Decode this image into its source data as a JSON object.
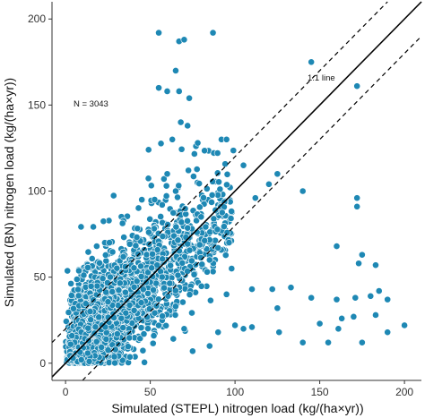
{
  "chart_data": {
    "type": "scatter",
    "xlabel": "Simulated (STEPL) nitrogen load (kg/(ha×yr))",
    "ylabel": "Simulated (BN) nitrogen load (kg/(ha×yr))",
    "xlim": [
      -8,
      210
    ],
    "ylim": [
      -10,
      210
    ],
    "x_ticks": [
      0,
      50,
      100,
      150,
      200
    ],
    "y_ticks": [
      0,
      50,
      100,
      150,
      200
    ],
    "grid": false,
    "legend": "none",
    "point_color": "#1e88b4",
    "annotations": {
      "n_label": "N = 3043",
      "one_to_one_label": "1:1 line"
    },
    "reference_lines": [
      {
        "name": "1:1 line",
        "style": "solid",
        "offset": 0
      },
      {
        "style": "dashed",
        "offset": 20
      },
      {
        "style": "dashed",
        "offset": -20
      }
    ],
    "points": [
      [
        55,
        192
      ],
      [
        67,
        187
      ],
      [
        70,
        188
      ],
      [
        87,
        192
      ],
      [
        145,
        175
      ],
      [
        172,
        161
      ],
      [
        49,
        124
      ],
      [
        63,
        130
      ],
      [
        55,
        160
      ],
      [
        60,
        158
      ],
      [
        67,
        158
      ],
      [
        68,
        140
      ],
      [
        65,
        170
      ],
      [
        73,
        154
      ],
      [
        72,
        138
      ],
      [
        78,
        128
      ],
      [
        92,
        130
      ],
      [
        95,
        130
      ],
      [
        105,
        115
      ],
      [
        120,
        104
      ],
      [
        125,
        110
      ],
      [
        112,
        96
      ],
      [
        140,
        100
      ],
      [
        172,
        96
      ],
      [
        172,
        91
      ],
      [
        160,
        68
      ],
      [
        175,
        63
      ],
      [
        183,
        57
      ],
      [
        173,
        58
      ],
      [
        110,
        43
      ],
      [
        122,
        43
      ],
      [
        133,
        44
      ],
      [
        145,
        38
      ],
      [
        160,
        37
      ],
      [
        171,
        38
      ],
      [
        180,
        39
      ],
      [
        185,
        42
      ],
      [
        190,
        37
      ],
      [
        183,
        28
      ],
      [
        170,
        27
      ],
      [
        163,
        26
      ],
      [
        150,
        23
      ],
      [
        126,
        18
      ],
      [
        140,
        12
      ],
      [
        155,
        12
      ],
      [
        161,
        20
      ],
      [
        175,
        12
      ],
      [
        200,
        22
      ],
      [
        190,
        18
      ],
      [
        125,
        32
      ],
      [
        100,
        22
      ],
      [
        110,
        21
      ],
      [
        75,
        7
      ],
      [
        85,
        10
      ],
      [
        90,
        18
      ],
      [
        70,
        20
      ],
      [
        105,
        20
      ],
      [
        14,
        1
      ],
      [
        3,
        11
      ],
      [
        95,
        40
      ],
      [
        85,
        60
      ],
      [
        80,
        85
      ],
      [
        90,
        67
      ],
      [
        98,
        55
      ],
      [
        65,
        100
      ],
      [
        60,
        110
      ],
      [
        45,
        95
      ],
      [
        57,
        92
      ]
    ],
    "cluster": {
      "count": 2975,
      "seed": 3043
    }
  }
}
